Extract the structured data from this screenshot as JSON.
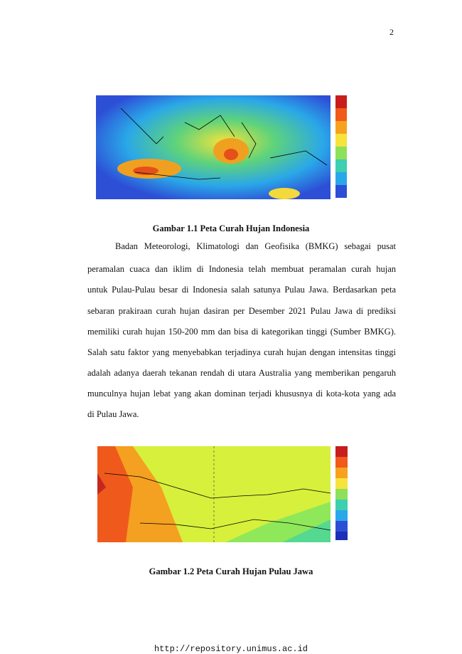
{
  "page_number": "2",
  "figure_1": {
    "caption": "Gambar 1.1 Peta Curah Hujan Indonesia"
  },
  "paragraph": {
    "lines": [
      "Badan Meteorologi, Klimatologi dan Geofisika (BMKG) sebagai pusat",
      "peramalan cuaca dan iklim di Indonesia telah membuat peramalan curah hujan",
      "untuk Pulau-Pulau besar di Indonesia salah satunya Pulau Jawa. Berdasarkan peta",
      "sebaran prakiraan curah hujan dasiran per Desember 2021 Pulau Jawa di prediksi",
      "memiliki curah hujan 150-200 mm dan bisa di kategorikan tinggi (Sumber BMKG).",
      "Salah satu faktor yang menyebabkan terjadinya curah hujan dengan intensitas tinggi",
      "adalah adanya daerah tekanan rendah di utara Australia yang memberikan pengaruh",
      "munculnya hujan lebat yang akan dominan terjadi khususnya di kota-kota yang ada",
      "di Pulau Jawa."
    ]
  },
  "figure_2": {
    "caption": "Gambar 1.2 Peta Curah Hujan Pulau Jawa"
  },
  "footer": {
    "url": "http://repository.unimus.ac.id"
  }
}
